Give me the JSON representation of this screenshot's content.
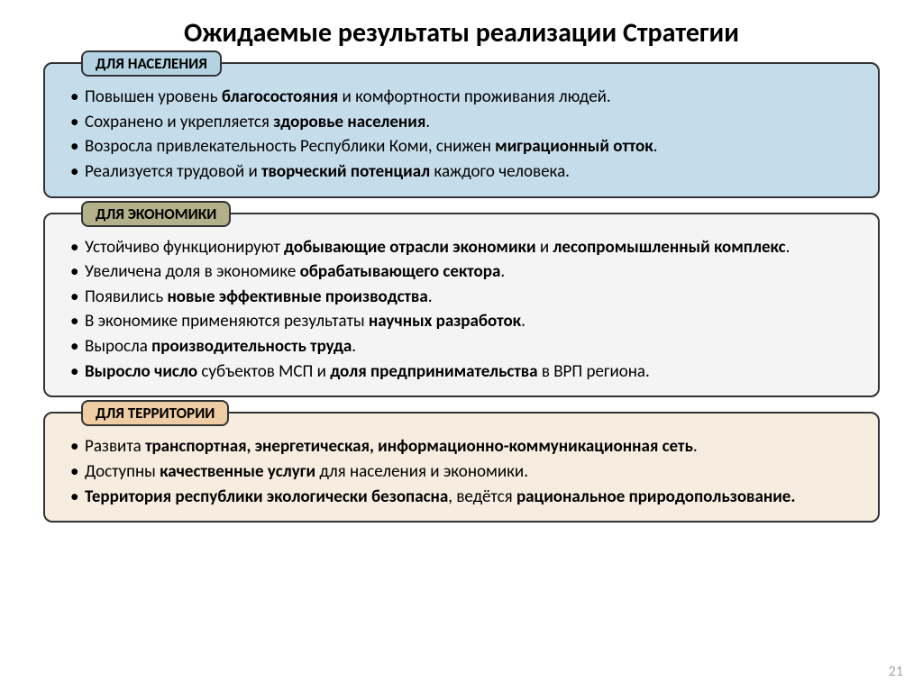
{
  "title": "Ожидаемые результаты реализации Стратегии",
  "page_number": "21",
  "sections": [
    {
      "id": "population",
      "header": "ДЛЯ НАСЕЛЕНИЯ",
      "bg_color": "#c5ddea",
      "header_bg": "#b3d2e2",
      "items": [
        "Повышен уровень <b>благосостояния</b> и комфортности проживания людей.",
        "Сохранено и укрепляется <b>здоровье населения</b>.",
        "Возросла привлекательность Республики Коми, снижен <b>миграционный отток</b>.",
        "Реализуется трудовой и <b>творческий потенциал</b> каждого человека."
      ]
    },
    {
      "id": "economy",
      "header": "ДЛЯ ЭКОНОМИКИ",
      "bg_color": "#f4f4f4",
      "header_bg": "#b3b18b",
      "items": [
        "Устойчиво функционируют <b>добывающие отрасли экономики</b> и <b>лесопромышленный комплекс</b>.",
        "Увеличена доля в экономике <b>обрабатывающего сектора</b>.",
        "Появились <b>новые эффективные производства</b>.",
        "В экономике применяются результаты <b>научных разработок</b>.",
        "Выросла <b>производительность труда</b>.",
        "<b>Выросло число</b> субъектов МСП и <b>доля предпринимательства</b> в ВРП региона."
      ]
    },
    {
      "id": "territory",
      "header": "ДЛЯ ТЕРРИТОРИИ",
      "bg_color": "#f6ece0",
      "header_bg": "#eecda4",
      "items": [
        "Развита <b>транспортная, энергетическая, информационно-коммуникационная сеть</b>.",
        "Доступны <b>качественные услуги</b> для населения и экономики.",
        "<b>Территория республики экологически безопасна</b>, ведётся <b>рациональное природопользование.</b>"
      ]
    }
  ],
  "style": {
    "border_color": "#333333",
    "title_fontsize": 30,
    "header_fontsize": 17,
    "item_fontsize": 19
  }
}
